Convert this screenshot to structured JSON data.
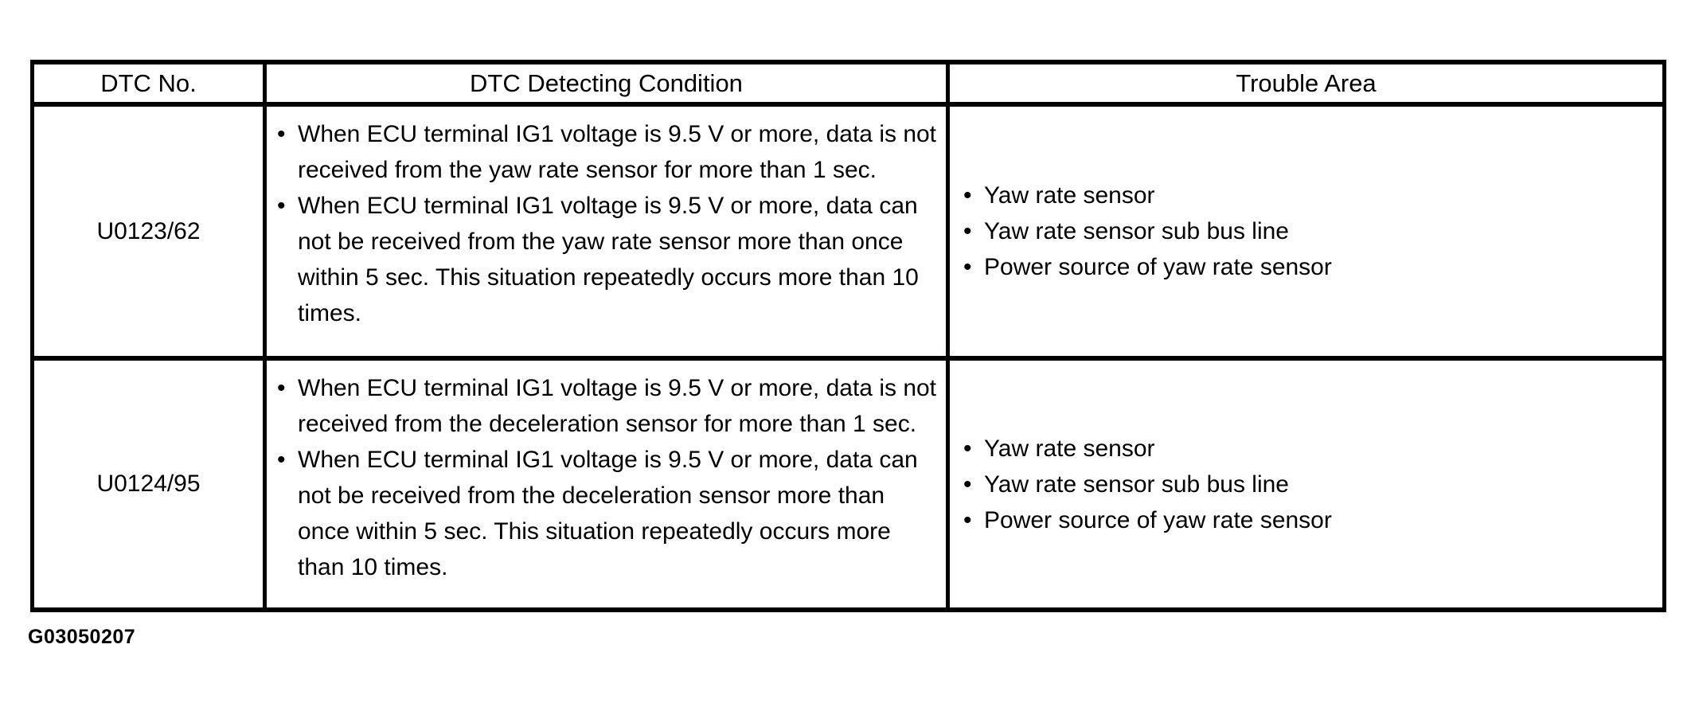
{
  "colors": {
    "background": "#ffffff",
    "border": "#000000",
    "text": "#000000"
  },
  "bullet_glyph": "•",
  "figure_id": "G03050207",
  "table": {
    "columns": [
      "DTC No.",
      "DTC Detecting Condition",
      "Trouble Area"
    ],
    "rows": [
      {
        "dtc_no": "U0123/62",
        "conditions": [
          "When ECU terminal IG1 voltage is 9.5 V or more, data is not received from the yaw rate sensor for more than 1 sec.",
          "When ECU terminal IG1 voltage is 9.5 V or more, data can not be received from the yaw rate sensor more than once within 5 sec. This situation repeatedly occurs more than 10 times."
        ],
        "trouble_areas": [
          "Yaw rate sensor",
          "Yaw rate sensor sub bus line",
          "Power source of yaw rate sensor"
        ]
      },
      {
        "dtc_no": "U0124/95",
        "conditions": [
          "When ECU terminal IG1 voltage is 9.5 V or more, data is not received from the deceleration sensor for more than 1 sec.",
          "When ECU terminal IG1 voltage is 9.5 V or more, data can not be received from the deceleration sensor more than once within 5 sec. This situation repeatedly occurs more than 10 times."
        ],
        "trouble_areas": [
          "Yaw rate sensor",
          "Yaw rate sensor sub bus line",
          "Power source of yaw rate sensor"
        ]
      }
    ]
  }
}
